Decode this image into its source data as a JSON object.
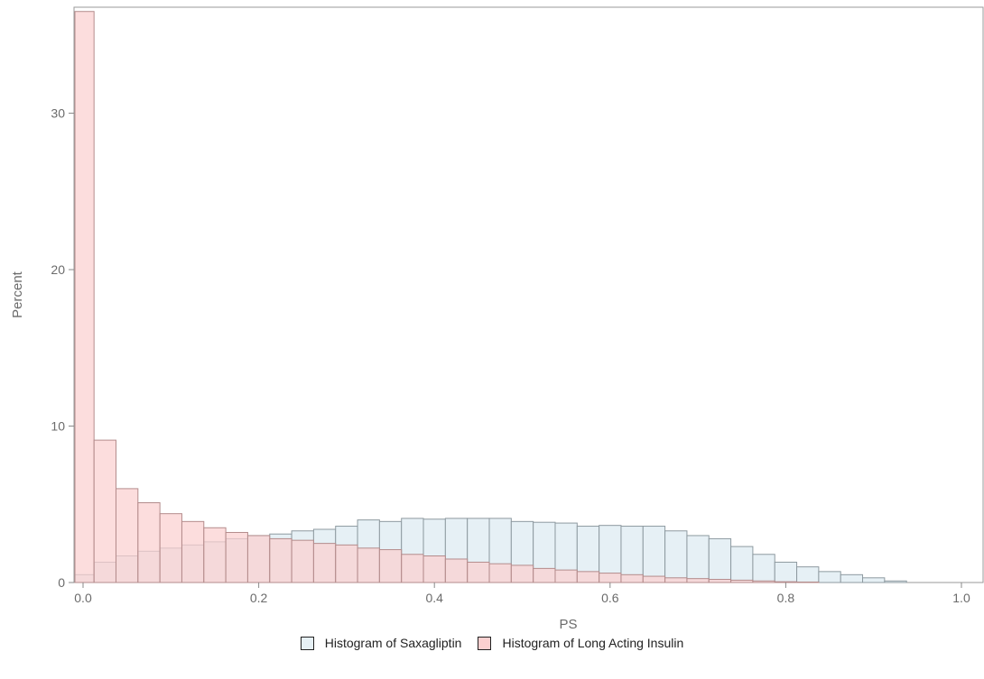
{
  "chart_data": {
    "type": "bar",
    "title": "",
    "xlabel": "PS",
    "ylabel": "Percent",
    "xlim": [
      0.0,
      1.0
    ],
    "ylim": [
      0,
      36.5
    ],
    "x_ticks": [
      "0.0",
      "0.2",
      "0.4",
      "0.6",
      "0.8",
      "1.0"
    ],
    "y_ticks": [
      "0",
      "10",
      "20",
      "30"
    ],
    "bin_width": 0.025,
    "bin_starts": [
      -0.0125,
      0.0125,
      0.0375,
      0.0625,
      0.0875,
      0.1125,
      0.1375,
      0.1625,
      0.1875,
      0.2125,
      0.2375,
      0.2625,
      0.2875,
      0.3125,
      0.3375,
      0.3625,
      0.3875,
      0.4125,
      0.4375,
      0.4625,
      0.4875,
      0.5125,
      0.5375,
      0.5625,
      0.5875,
      0.6125,
      0.6375,
      0.6625,
      0.6875,
      0.7125,
      0.7375,
      0.7625,
      0.7875,
      0.8125,
      0.8375,
      0.8625,
      0.8875,
      0.9125,
      0.9375,
      0.9625,
      0.9875
    ],
    "series": [
      {
        "name": "Histogram of Saxagliptin",
        "color": "#e6f0f5",
        "values": [
          0.5,
          1.3,
          1.7,
          2.0,
          2.2,
          2.4,
          2.6,
          2.8,
          3.0,
          3.1,
          3.3,
          3.4,
          3.6,
          4.0,
          3.9,
          4.1,
          4.05,
          4.1,
          4.1,
          4.1,
          3.9,
          3.85,
          3.8,
          3.6,
          3.65,
          3.6,
          3.6,
          3.3,
          3.0,
          2.8,
          2.3,
          1.8,
          1.3,
          1.0,
          0.7,
          0.5,
          0.3,
          0.1,
          0.0,
          0.0,
          0.0
        ]
      },
      {
        "name": "Histogram of Long Acting Insulin",
        "color": "#fbd0d0",
        "values": [
          36.5,
          9.1,
          6.0,
          5.1,
          4.4,
          3.9,
          3.5,
          3.2,
          3.0,
          2.8,
          2.7,
          2.5,
          2.4,
          2.2,
          2.1,
          1.8,
          1.7,
          1.5,
          1.3,
          1.2,
          1.1,
          0.9,
          0.8,
          0.7,
          0.6,
          0.5,
          0.4,
          0.3,
          0.25,
          0.2,
          0.15,
          0.1,
          0.05,
          0.03,
          0.0,
          0.0,
          0.0,
          0.0,
          0.0,
          0.0,
          0.0
        ]
      }
    ],
    "legend": "bottom-center",
    "grid": false
  }
}
